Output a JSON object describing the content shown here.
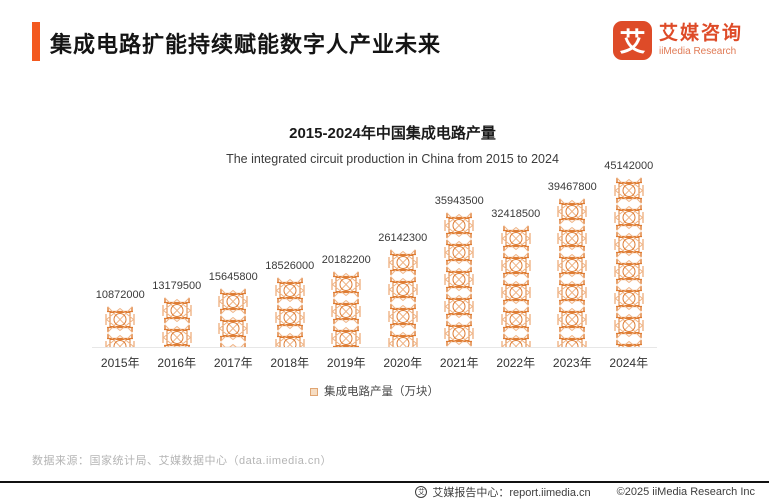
{
  "header": {
    "title": "集成电路扩能持续赋能数字人产业未来",
    "logo": {
      "icon_char": "艾",
      "name_cn": "艾媒咨询",
      "name_en": "iiMedia Research"
    }
  },
  "chart_data": {
    "type": "bar",
    "title": "2015-2024年中国集成电路产量",
    "subtitle": "The integrated circuit production in China from 2015 to 2024",
    "categories": [
      "2015年",
      "2016年",
      "2017年",
      "2018年",
      "2019年",
      "2020年",
      "2021年",
      "2022年",
      "2023年",
      "2024年"
    ],
    "values": [
      10872000,
      13179500,
      15645800,
      18526000,
      20182200,
      26142300,
      35943500,
      32418500,
      39467800,
      45142000
    ],
    "series_name": "集成电路产量（万块）",
    "xlabel": "",
    "ylabel": "",
    "ylim": [
      0,
      45142000
    ],
    "grid": false,
    "data_labels": true,
    "legend_position": "bottom",
    "bar_color": "#DE7C33",
    "bar_color_light": "#EFB486"
  },
  "legend": {
    "label": "集成电路产量（万块）"
  },
  "source": "数据来源：国家统计局、艾媒数据中心（data.iimedia.cn）",
  "footer": {
    "badge_char": "艾",
    "report_center": "艾媒报告中心：report.iimedia.cn",
    "copyright": "©2025  iiMedia Research Inc"
  },
  "colors": {
    "accent": "#F3591F",
    "brand": "#DE4B28",
    "pattern": "#DE7C33",
    "axis_line": "#e7e7e7"
  }
}
